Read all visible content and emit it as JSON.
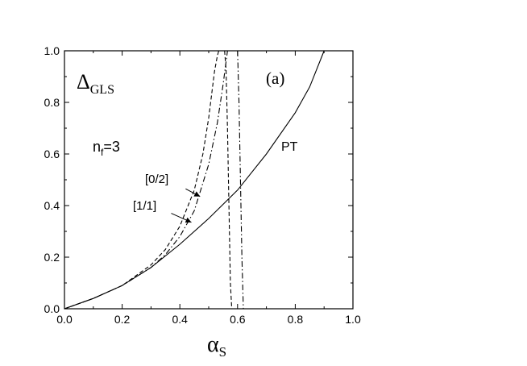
{
  "chart_data": {
    "type": "line",
    "panel_label": "(a)",
    "ylabel": "Δ",
    "ylabel_sub": "GLS",
    "xlabel": "α",
    "xlabel_sub": "S",
    "annotation_nf": "n",
    "annotation_nf_sub": "f",
    "annotation_nf_rest": "=3",
    "xlim": [
      0.0,
      1.0
    ],
    "ylim": [
      0.0,
      1.0
    ],
    "x_ticks": [
      "0.0",
      "0.2",
      "0.4",
      "0.6",
      "0.8",
      "1.0"
    ],
    "y_ticks": [
      "0.0",
      "0.2",
      "0.4",
      "0.6",
      "0.8",
      "1.0"
    ],
    "x_tick_values": [
      0.0,
      0.2,
      0.4,
      0.6,
      0.8,
      1.0
    ],
    "y_tick_values": [
      0.0,
      0.2,
      0.4,
      0.6,
      0.8,
      1.0
    ],
    "grid": false,
    "series": [
      {
        "name": "PT",
        "style": "solid",
        "x": [
          0.0,
          0.1,
          0.2,
          0.3,
          0.4,
          0.5,
          0.6,
          0.7,
          0.8,
          0.85,
          0.9
        ],
        "y": [
          0.0,
          0.04,
          0.09,
          0.16,
          0.25,
          0.35,
          0.46,
          0.6,
          0.76,
          0.86,
          1.0
        ]
      },
      {
        "name": "[0/2]",
        "style": "dashed",
        "branches": [
          {
            "x": [
              0.0,
              0.1,
              0.2,
              0.3,
              0.35,
              0.4,
              0.45,
              0.48,
              0.5,
              0.52,
              0.53,
              0.535
            ],
            "y": [
              0.0,
              0.04,
              0.09,
              0.17,
              0.23,
              0.32,
              0.46,
              0.6,
              0.74,
              0.92,
              0.98,
              1.0
            ]
          },
          {
            "x": [
              0.555,
              0.56,
              0.565,
              0.57,
              0.575,
              0.58
            ],
            "y": [
              1.0,
              0.93,
              0.7,
              0.4,
              0.1,
              0.0
            ]
          }
        ]
      },
      {
        "name": "[1/1]",
        "style": "dashdot",
        "branches": [
          {
            "x": [
              0.0,
              0.1,
              0.2,
              0.3,
              0.35,
              0.4,
              0.45,
              0.5,
              0.53,
              0.55,
              0.565
            ],
            "y": [
              0.0,
              0.04,
              0.09,
              0.16,
              0.21,
              0.28,
              0.38,
              0.56,
              0.72,
              0.87,
              1.0
            ]
          },
          {
            "x": [
              0.6,
              0.605,
              0.61,
              0.615,
              0.62
            ],
            "y": [
              1.0,
              0.8,
              0.5,
              0.2,
              0.0
            ]
          }
        ]
      }
    ],
    "labels": [
      {
        "text": "PT"
      },
      {
        "text": "[0/2]"
      },
      {
        "text": "[1/1]"
      }
    ]
  }
}
